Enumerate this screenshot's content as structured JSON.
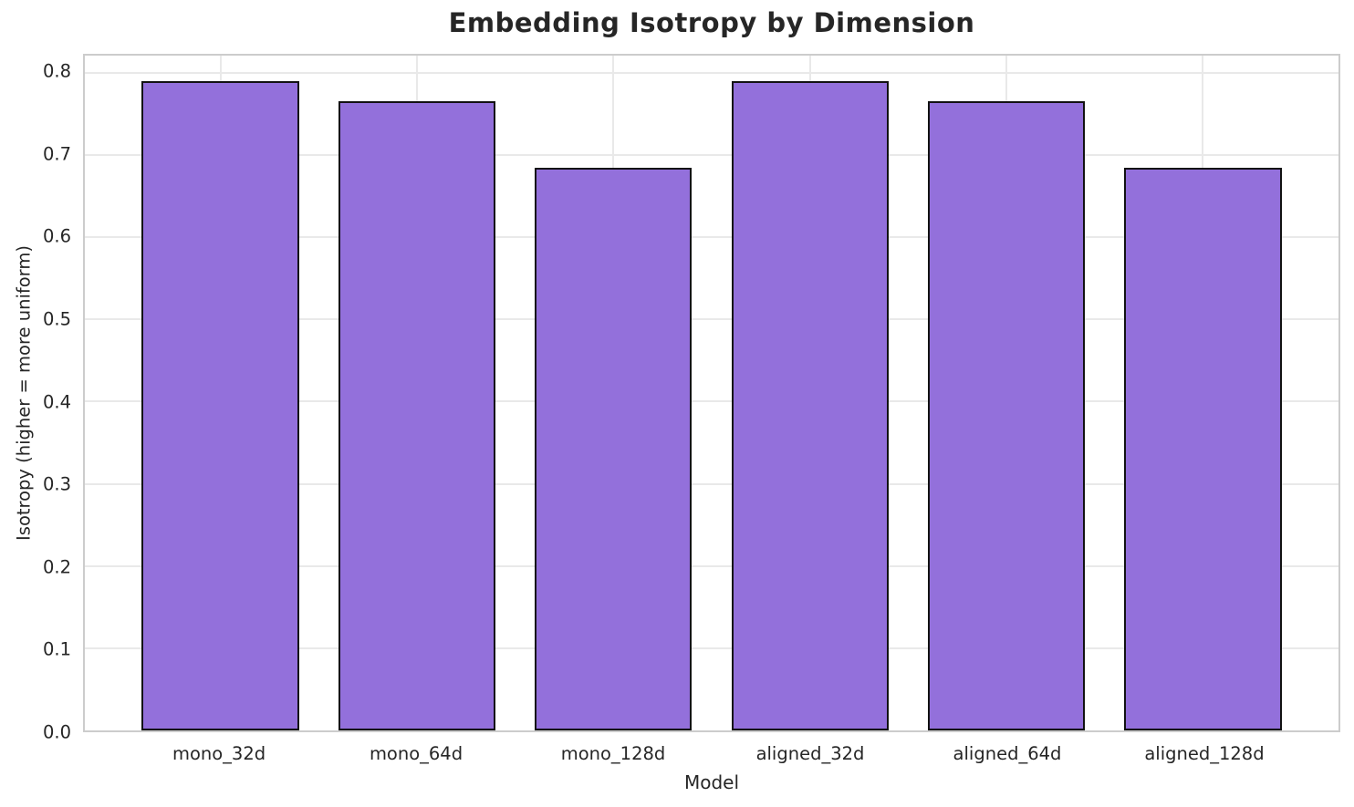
{
  "chart_data": {
    "type": "bar",
    "title": "Embedding Isotropy by Dimension",
    "xlabel": "Model",
    "ylabel": "Isotropy (higher = more uniform)",
    "categories": [
      "mono_32d",
      "mono_64d",
      "mono_128d",
      "aligned_32d",
      "aligned_64d",
      "aligned_128d"
    ],
    "values": [
      0.79,
      0.765,
      0.685,
      0.79,
      0.765,
      0.685
    ],
    "ylim": [
      0,
      0.821
    ],
    "yticks": [
      0.0,
      0.1,
      0.2,
      0.3,
      0.4,
      0.5,
      0.6,
      0.7,
      0.8
    ],
    "ytick_labels": [
      "0.0",
      "0.1",
      "0.2",
      "0.3",
      "0.4",
      "0.5",
      "0.6",
      "0.7",
      "0.8"
    ],
    "grid": true,
    "legend_position": "none",
    "bar_width_fraction": 0.8,
    "colors": {
      "bar_fill": "#9370db",
      "bar_edge": "#121212",
      "grid_line": "#e9e9e9",
      "spine": "#cccccc",
      "text": "#262626",
      "background": "#ffffff"
    }
  }
}
